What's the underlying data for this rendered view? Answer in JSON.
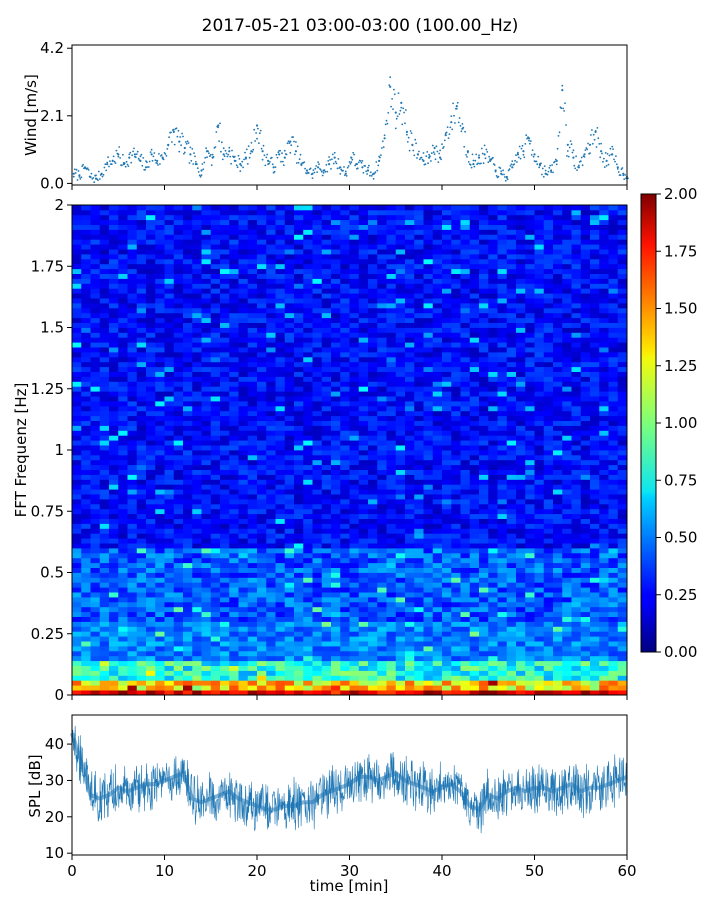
{
  "figure": {
    "title": "2017-05-21 03:00-03:00 (100.00_Hz)"
  },
  "chart_data": [
    {
      "type": "scatter",
      "panel": "wind",
      "ylabel": "Wind [m/s]",
      "xlabel": "",
      "xlim": [
        0,
        60
      ],
      "ylim": [
        -0.05,
        4.3
      ],
      "yticks": [
        0.0,
        2.1,
        4.2
      ],
      "ytick_labels": [
        "0.0",
        "2.1",
        "4.2"
      ],
      "xticks": [
        0,
        10,
        20,
        30,
        40,
        50,
        60
      ],
      "xtick_labels_visible": false,
      "marker_color": "#1f77b4",
      "x": [
        0.2,
        0.8,
        1.4,
        2.0,
        2.6,
        3.2,
        3.8,
        4.4,
        5.0,
        5.6,
        6.2,
        6.8,
        7.4,
        8.0,
        8.6,
        9.2,
        9.8,
        10.4,
        11.0,
        11.6,
        12.2,
        12.8,
        13.4,
        14.0,
        14.6,
        15.2,
        15.8,
        16.4,
        17.0,
        17.6,
        18.2,
        18.8,
        19.4,
        20.0,
        20.6,
        21.2,
        21.8,
        22.4,
        23.0,
        23.6,
        24.2,
        24.8,
        25.4,
        26.0,
        26.6,
        27.2,
        27.8,
        28.4,
        29.0,
        29.6,
        30.2,
        30.8,
        31.4,
        32.0,
        32.6,
        33.2,
        33.8,
        34.4,
        35.0,
        35.6,
        36.2,
        36.8,
        37.4,
        38.0,
        38.6,
        39.2,
        39.8,
        40.4,
        41.0,
        41.6,
        42.2,
        42.8,
        43.4,
        44.0,
        44.6,
        45.2,
        45.8,
        46.4,
        47.0,
        47.6,
        48.2,
        48.8,
        49.4,
        50.0,
        50.6,
        51.2,
        51.8,
        52.4,
        53.0,
        53.6,
        54.2,
        54.8,
        55.4,
        56.0,
        56.6,
        57.2,
        57.8,
        58.4,
        59.0,
        59.6
      ],
      "y": [
        0.3,
        0.25,
        0.5,
        0.2,
        0.15,
        0.3,
        0.6,
        0.7,
        0.9,
        0.6,
        0.8,
        0.9,
        0.7,
        0.5,
        0.9,
        0.7,
        0.8,
        1.2,
        1.6,
        1.3,
        1.1,
        0.9,
        0.6,
        0.4,
        1.0,
        0.8,
        1.8,
        0.9,
        1.0,
        0.7,
        0.6,
        0.8,
        1.0,
        1.8,
        1.0,
        0.7,
        0.5,
        0.9,
        0.8,
        1.3,
        1.0,
        0.6,
        0.4,
        0.3,
        0.5,
        0.4,
        0.6,
        0.8,
        0.5,
        0.3,
        0.8,
        0.6,
        0.5,
        0.4,
        0.3,
        0.7,
        1.4,
        3.0,
        2.2,
        2.5,
        1.6,
        1.2,
        0.9,
        0.7,
        0.8,
        1.1,
        0.8,
        1.5,
        1.9,
        2.4,
        1.7,
        1.0,
        0.6,
        0.8,
        0.9,
        0.7,
        0.4,
        0.3,
        0.2,
        0.5,
        0.9,
        1.0,
        1.4,
        0.9,
        0.6,
        0.3,
        0.4,
        0.7,
        2.9,
        1.2,
        0.8,
        0.5,
        0.9,
        1.2,
        1.6,
        1.0,
        0.7,
        0.9,
        0.5,
        0.3
      ]
    },
    {
      "type": "heatmap",
      "panel": "spectrogram",
      "xlabel": "",
      "ylabel": "FFT Frequenz [Hz]",
      "xlim": [
        0,
        60
      ],
      "ylim": [
        0,
        2
      ],
      "yticks": [
        0,
        0.25,
        0.5,
        0.75,
        1,
        1.25,
        1.5,
        1.75,
        2
      ],
      "ytick_labels": [
        "0",
        "0.25",
        "0.5",
        "0.75",
        "1",
        "1.25",
        "1.5",
        "1.75",
        "2"
      ],
      "xticks": [
        0,
        10,
        20,
        30,
        40,
        50,
        60
      ],
      "xtick_labels_visible": false,
      "colormap": "jet",
      "colorbar": {
        "range": [
          0.0,
          2.0
        ],
        "ticks": [
          0.0,
          0.25,
          0.5,
          0.75,
          1.0,
          1.25,
          1.5,
          1.75,
          2.0
        ],
        "tick_labels": [
          "0.00",
          "0.25",
          "0.50",
          "0.75",
          "1.00",
          "1.25",
          "1.50",
          "1.75",
          "2.00"
        ]
      }
    },
    {
      "type": "line",
      "panel": "spl",
      "xlabel": "time [min]",
      "ylabel": "SPL [dB]",
      "xlim": [
        0,
        60
      ],
      "ylim": [
        9.5,
        48
      ],
      "xticks": [
        0,
        10,
        20,
        30,
        40,
        50,
        60
      ],
      "xtick_labels": [
        "0",
        "10",
        "20",
        "30",
        "40",
        "50",
        "60"
      ],
      "yticks": [
        10,
        20,
        30,
        40
      ],
      "ytick_labels": [
        "10",
        "20",
        "30",
        "40"
      ],
      "line_color": "#1f77b4",
      "x": [
        0,
        1,
        2,
        3,
        4,
        5,
        6,
        7,
        8,
        9,
        10,
        11,
        12,
        13,
        14,
        15,
        16,
        17,
        18,
        19,
        20,
        21,
        22,
        23,
        24,
        25,
        26,
        27,
        28,
        29,
        30,
        31,
        32,
        33,
        34,
        35,
        36,
        37,
        38,
        39,
        40,
        41,
        42,
        43,
        44,
        45,
        46,
        47,
        48,
        49,
        50,
        51,
        52,
        53,
        54,
        55,
        56,
        57,
        58,
        59,
        60
      ],
      "y": [
        43,
        35,
        26,
        25,
        26,
        28,
        27,
        28,
        29,
        29,
        30,
        31,
        32,
        25,
        24,
        25,
        26,
        27,
        25,
        24,
        23,
        22,
        22,
        23,
        23,
        24,
        24,
        26,
        27,
        28,
        29,
        31,
        31,
        30,
        31,
        32,
        30,
        29,
        28,
        27,
        28,
        29,
        27,
        23,
        22,
        26,
        25,
        27,
        28,
        27,
        28,
        28,
        27,
        28,
        29,
        27,
        28,
        28,
        29,
        30,
        31
      ]
    }
  ]
}
